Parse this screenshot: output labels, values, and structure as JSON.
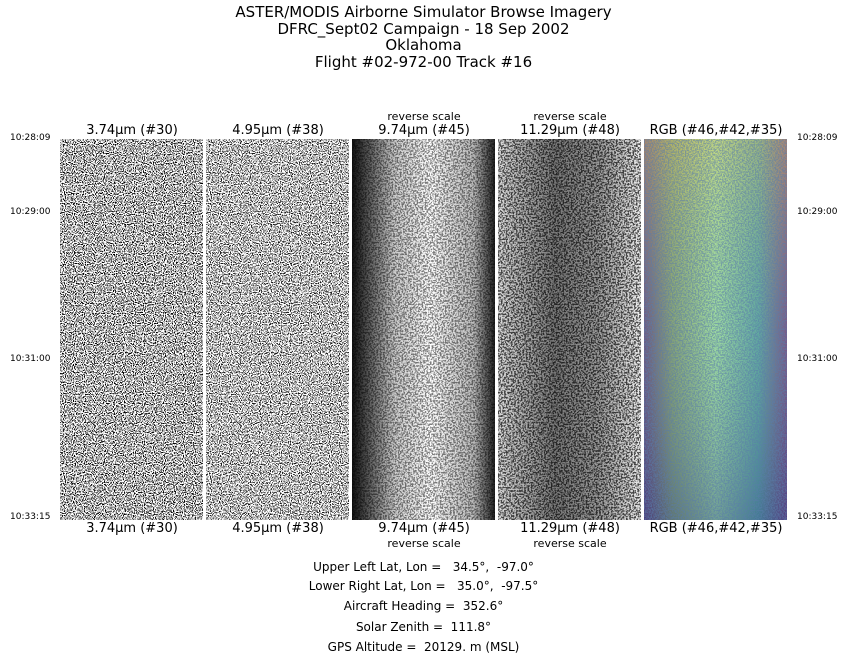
{
  "title": {
    "line1": "ASTER/MODIS Airborne Simulator Browse Imagery",
    "line2": "DFRC_Sept02 Campaign - 18 Sep 2002",
    "line3": "Oklahoma",
    "line4": "Flight #02-972-00 Track #16"
  },
  "panels": [
    {
      "label": "3.74μm (#30)",
      "note": ""
    },
    {
      "label": "4.95μm (#38)",
      "note": ""
    },
    {
      "label": "9.74μm (#45)",
      "note": "reverse scale"
    },
    {
      "label": "11.29μm (#48)",
      "note": "reverse scale"
    },
    {
      "label": "RGB (#46,#42,#35)",
      "note": ""
    }
  ],
  "times": [
    "10:28:09",
    "10:29:00",
    "10:31:00",
    "10:33:15"
  ],
  "info": {
    "upper_left": "Upper Left Lat, Lon =   34.5°,  -97.0°",
    "lower_right": "Lower Right Lat, Lon =   35.0°,  -97.5°",
    "heading": "Aircraft Heading =  352.6°",
    "solar_zenith": "Solar Zenith =  111.8°",
    "gps_altitude": "GPS Altitude =  20129. m (MSL)"
  }
}
